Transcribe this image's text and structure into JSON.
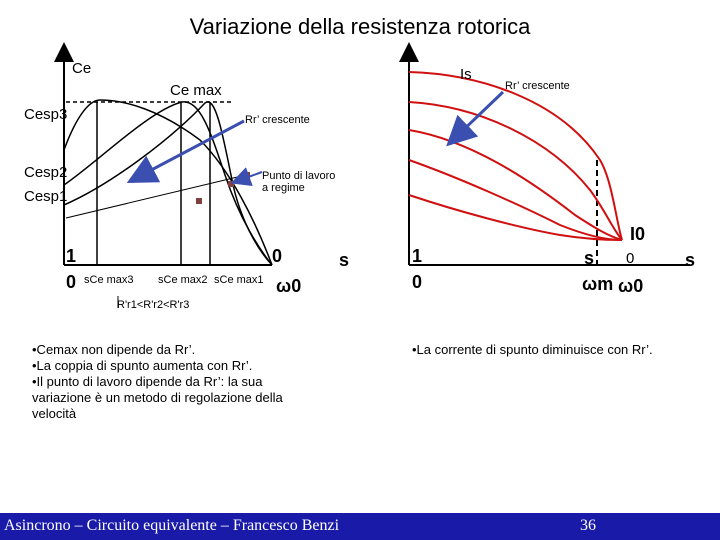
{
  "title": "Variazione della resistenza rotorica",
  "left_chart": {
    "y_axis": "Ce",
    "ce_max": "Ce max",
    "cesp3": "Cesp3",
    "cesp2": "Cesp2",
    "cesp1": "Cesp1",
    "rr_label": "Rr’ crescente",
    "punto": "Punto di lavoro",
    "punto2": "a regime",
    "one": "1",
    "zero_left": "0",
    "s_ce_max3": "sCe max3",
    "s_ce_max2": "sCe max2",
    "s_ce_max1": "sCe max1",
    "zero_mid": "0",
    "omega0": "ω0",
    "s": "s",
    "order": "R'r1<R'r2<R'r3"
  },
  "right_chart": {
    "y_axis": "Is",
    "rr_label": "Rr’ crescente",
    "i0": "I0",
    "one": "1",
    "zero_left": "0",
    "s_mid": "s",
    "zero_mid": "0",
    "omega_m": "ωm",
    "omega0": "ω0",
    "s": "s"
  },
  "bullets_left": [
    "•Cemax non dipende da Rr’.",
    "•La coppia di spunto aumenta con Rr’.",
    "•Il punto di lavoro dipende da Rr’: la sua variazione è un metodo di regolazione della velocità"
  ],
  "bullets_right": [
    "•La corrente di spunto diminuisce con Rr’."
  ],
  "footer": {
    "text": "Asincrono – Circuito equivalente – Francesco Benzi",
    "page": "36"
  },
  "colors": {
    "curve": "#d01010",
    "arrow": "#3a4fb0",
    "footer": "#1a1aa8"
  }
}
